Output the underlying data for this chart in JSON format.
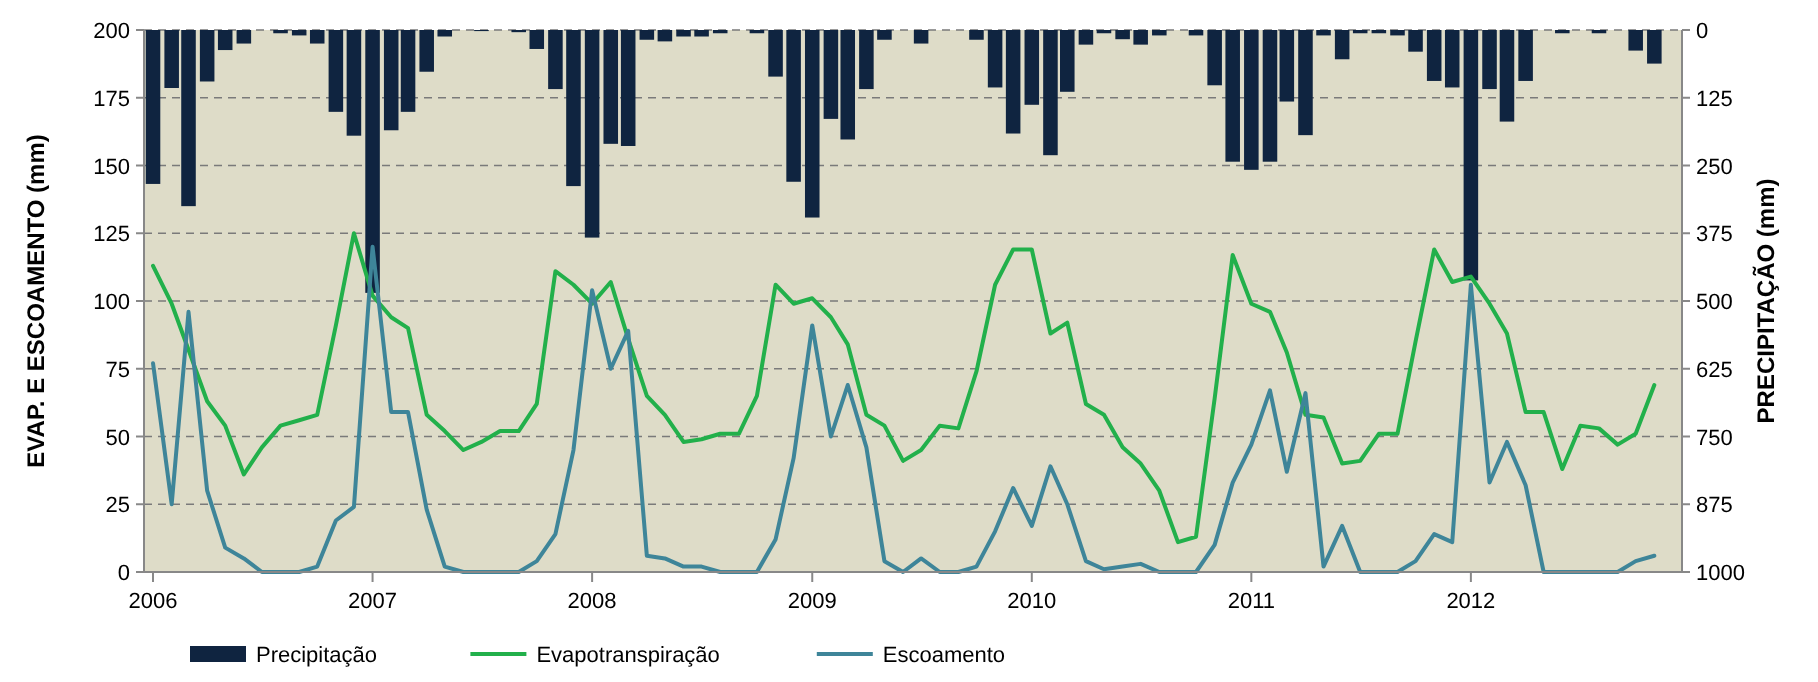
{
  "chart_data": {
    "type": "line",
    "ylabel": "EVAP. E ESCOAMENTO  (mm)",
    "y2label": "PRECIPITAÇÃO  (mm)",
    "x": [
      "2006-01",
      "2006-02",
      "2006-03",
      "2006-04",
      "2006-05",
      "2006-06",
      "2006-07",
      "2006-08",
      "2006-09",
      "2006-10",
      "2006-11",
      "2006-12",
      "2007-01",
      "2007-02",
      "2007-03",
      "2007-04",
      "2007-05",
      "2007-06",
      "2007-07",
      "2007-08",
      "2007-09",
      "2007-10",
      "2007-11",
      "2007-12",
      "2008-01",
      "2008-02",
      "2008-03",
      "2008-04",
      "2008-05",
      "2008-06",
      "2008-07",
      "2008-08",
      "2008-09",
      "2008-10",
      "2008-11",
      "2008-12",
      "2009-01",
      "2009-02",
      "2009-03",
      "2009-04",
      "2009-05",
      "2009-06",
      "2009-07",
      "2009-08",
      "2009-09",
      "2009-10",
      "2009-11",
      "2009-12",
      "2010-01",
      "2010-02",
      "2010-03",
      "2010-04",
      "2010-05",
      "2010-06",
      "2010-07",
      "2010-08",
      "2010-09",
      "2010-10",
      "2010-11",
      "2010-12",
      "2011-01",
      "2011-02",
      "2011-03",
      "2011-04",
      "2011-05",
      "2011-06",
      "2011-07",
      "2011-08",
      "2011-09",
      "2011-10",
      "2011-11",
      "2011-12",
      "2012-01",
      "2012-02",
      "2012-03",
      "2012-04",
      "2012-05",
      "2012-06",
      "2012-07",
      "2012-08",
      "2012-09",
      "2012-10",
      "2012-11"
    ],
    "series": [
      {
        "name": "Precipitação",
        "type": "bar",
        "axis": "y2",
        "color": "#0f2440",
        "values": [
          284,
          107,
          325,
          95,
          37,
          25,
          0,
          6,
          10,
          25,
          151,
          195,
          485,
          185,
          151,
          77,
          12,
          0,
          2,
          0,
          4,
          35,
          109,
          288,
          383,
          210,
          214,
          18,
          21,
          12,
          12,
          6,
          0,
          6,
          86,
          280,
          346,
          164,
          202,
          109,
          18,
          0,
          25,
          0,
          0,
          18,
          106,
          191,
          138,
          231,
          114,
          27,
          6,
          17,
          27,
          10,
          0,
          10,
          102,
          243,
          258,
          243,
          132,
          194,
          10,
          54,
          6,
          6,
          10,
          40,
          94,
          106,
          462,
          109,
          169,
          94,
          0,
          6,
          0,
          6,
          0,
          38,
          62
        ]
      },
      {
        "name": "Evapotranspiração",
        "color": "#22b04b",
        "values": [
          113,
          99,
          82,
          63,
          54,
          36,
          46,
          54,
          56,
          58,
          91,
          125,
          102,
          94,
          90,
          58,
          52,
          45,
          48,
          52,
          52,
          62,
          111,
          106,
          99,
          107,
          86,
          65,
          58,
          48,
          49,
          51,
          51,
          65,
          106,
          99,
          101,
          94,
          84,
          58,
          54,
          41,
          45,
          54,
          53,
          74,
          106,
          119,
          119,
          88,
          92,
          62,
          58,
          46,
          40,
          30,
          11,
          13,
          64,
          117,
          99,
          96,
          81,
          58,
          57,
          40,
          41,
          51,
          51,
          85,
          119,
          107,
          109,
          99,
          88,
          59,
          59,
          38,
          54,
          53,
          47,
          51,
          69
        ]
      },
      {
        "name": "Escoamento",
        "color": "#3e8599",
        "values": [
          77,
          25,
          96,
          30,
          9,
          5,
          0,
          0,
          0,
          2,
          19,
          24,
          120,
          59,
          59,
          23,
          2,
          0,
          0,
          0,
          0,
          4,
          14,
          45,
          104,
          75,
          89,
          6,
          5,
          2,
          2,
          0,
          0,
          0,
          12,
          42,
          91,
          50,
          69,
          46,
          4,
          0,
          5,
          0,
          0,
          2,
          15,
          31,
          17,
          39,
          25,
          4,
          1,
          2,
          3,
          0,
          0,
          0,
          10,
          33,
          47,
          67,
          37,
          66,
          2,
          17,
          0,
          0,
          0,
          4,
          14,
          11,
          106,
          33,
          48,
          32,
          0,
          0,
          0,
          0,
          0,
          4,
          6
        ]
      }
    ],
    "xlim": [
      "2005-12-17",
      "2012-12-17"
    ],
    "xticks": [
      "2006",
      "2007",
      "2008",
      "2009",
      "2010",
      "2011",
      "2012"
    ],
    "ylim": [
      0,
      200
    ],
    "yticks": [
      0,
      25,
      50,
      75,
      100,
      125,
      150,
      175,
      200
    ],
    "y2lim": [
      1000,
      0
    ],
    "y2ticks": [
      0,
      125,
      250,
      375,
      500,
      625,
      750,
      875,
      1000
    ],
    "grid": "y",
    "legend": "bottom",
    "marker": "none",
    "line_style": "solid"
  }
}
